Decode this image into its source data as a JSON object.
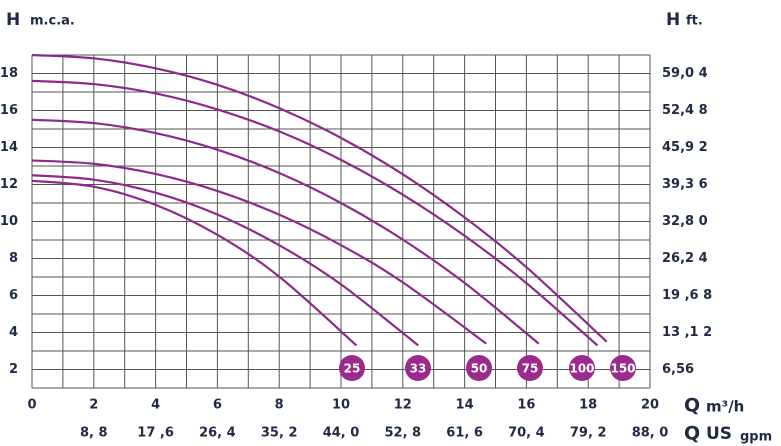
{
  "chart_data": {
    "type": "line",
    "y_label": {
      "symbol": "H",
      "unit": "m.c.a."
    },
    "y2_label": {
      "symbol": "H",
      "unit": "ft."
    },
    "x_label": {
      "symbol": "Q",
      "unit": "m³/h"
    },
    "x2_label": {
      "symbol": "Q",
      "unit": "US",
      "sub": "gpm"
    },
    "xlim": [
      0,
      20
    ],
    "xticks": [
      0,
      2,
      4,
      6,
      8,
      10,
      12,
      14,
      16,
      18,
      20
    ],
    "xminor": [
      1,
      3,
      5,
      7,
      9,
      11,
      13,
      15,
      17,
      19
    ],
    "x2lim": [
      0,
      88
    ],
    "x2ticks": [
      {
        "value": 8.8,
        "label": "8, 8"
      },
      {
        "value": 17.6,
        "label": "17 ,6"
      },
      {
        "value": 26.4,
        "label": "26, 4"
      },
      {
        "value": 35.2,
        "label": "35, 2"
      },
      {
        "value": 44,
        "label": "44, 0"
      },
      {
        "value": 52.8,
        "label": "52, 8"
      },
      {
        "value": 61.6,
        "label": "61, 6"
      },
      {
        "value": 70.4,
        "label": "70, 4"
      },
      {
        "value": 79.2,
        "label": "79, 2"
      },
      {
        "value": 88,
        "label": "88, 0"
      }
    ],
    "ylim": [
      1,
      19
    ],
    "yticks": [
      2,
      4,
      6,
      8,
      10,
      12,
      14,
      16,
      18
    ],
    "yminor": [
      1,
      3,
      5,
      7,
      9,
      11,
      13,
      15,
      17,
      19
    ],
    "y2lim": [
      3.28,
      62.32
    ],
    "y2ticks": [
      {
        "value": 6.56,
        "label": "6,56"
      },
      {
        "value": 13.12,
        "label": "13 ,1 2"
      },
      {
        "value": 19.68,
        "label": "19 ,6 8"
      },
      {
        "value": 26.24,
        "label": "26,2 4"
      },
      {
        "value": 32.8,
        "label": "32,8 0"
      },
      {
        "value": 39.36,
        "label": "39,3 6"
      },
      {
        "value": 45.92,
        "label": "45,9 2"
      },
      {
        "value": 52.48,
        "label": "52,4 8"
      },
      {
        "value": 59.04,
        "label": "59,0 4"
      }
    ],
    "grid": true,
    "series": [
      {
        "name": "25",
        "color": "#8e2a8a",
        "x": [
          0,
          2,
          4,
          6,
          8,
          10.5
        ],
        "values": [
          12.2,
          11.88,
          10.9,
          9.28,
          7.02,
          3.3
        ]
      },
      {
        "name": "33",
        "color": "#8e2a8a",
        "x": [
          0,
          2,
          4,
          6,
          8,
          10,
          12.5
        ],
        "values": [
          12.5,
          12.26,
          11.56,
          10.38,
          8.72,
          6.6,
          3.3
        ]
      },
      {
        "name": "50",
        "color": "#8e2a8a",
        "x": [
          0,
          2,
          4,
          6,
          8,
          10,
          12,
          14.7
        ],
        "values": [
          13.3,
          13.12,
          12.57,
          11.65,
          10.37,
          8.72,
          6.71,
          3.4
        ]
      },
      {
        "name": "75",
        "color": "#8e2a8a",
        "x": [
          0,
          2,
          4,
          6,
          8,
          10,
          12,
          14,
          16.4
        ],
        "values": [
          15.5,
          15.32,
          14.78,
          13.88,
          12.62,
          11,
          9.02,
          6.68,
          3.4
        ]
      },
      {
        "name": "100",
        "color": "#8e2a8a",
        "x": [
          0,
          2,
          4,
          6,
          8,
          10,
          12,
          14,
          16,
          18.3
        ],
        "values": [
          17.6,
          17.43,
          16.92,
          16.06,
          14.87,
          13.33,
          11.45,
          9.23,
          6.67,
          3.3
        ]
      },
      {
        "name": "150",
        "color": "#8e2a8a",
        "x": [
          0,
          2,
          4,
          6,
          8,
          10,
          12,
          14,
          16,
          18.6
        ],
        "values": [
          19,
          18.82,
          18.28,
          17.39,
          16.13,
          14.52,
          12.55,
          10.22,
          7.53,
          3.5
        ]
      }
    ]
  }
}
